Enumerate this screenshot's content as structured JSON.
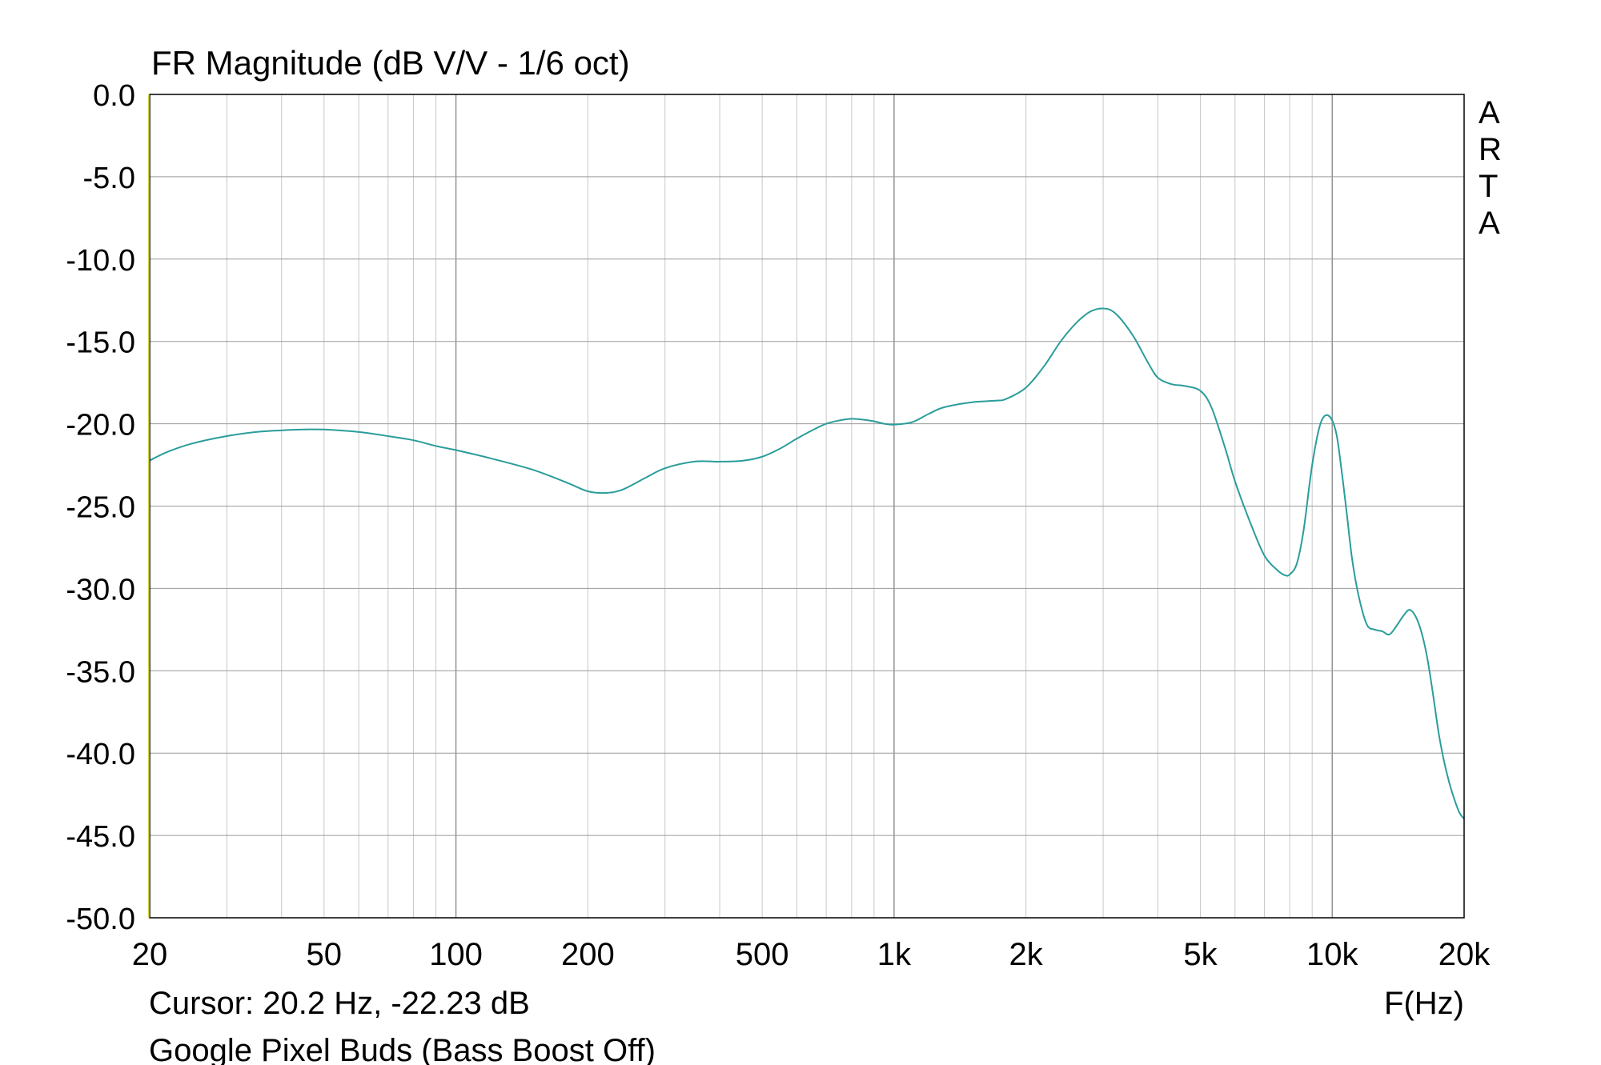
{
  "chart_data": {
    "type": "line",
    "title": "FR Magnitude (dB V/V - 1/6 oct)",
    "xlabel": "F(Hz)",
    "ylabel": "",
    "x_scale": "log",
    "xlim": [
      20,
      20000
    ],
    "ylim": [
      -50,
      0
    ],
    "grid": true,
    "x_ticks": [
      {
        "value": 20,
        "label": "20"
      },
      {
        "value": 50,
        "label": "50"
      },
      {
        "value": 100,
        "label": "100"
      },
      {
        "value": 200,
        "label": "200"
      },
      {
        "value": 500,
        "label": "500"
      },
      {
        "value": 1000,
        "label": "1k"
      },
      {
        "value": 2000,
        "label": "2k"
      },
      {
        "value": 5000,
        "label": "5k"
      },
      {
        "value": 10000,
        "label": "10k"
      },
      {
        "value": 20000,
        "label": "20k"
      }
    ],
    "y_ticks": [
      {
        "value": 0,
        "label": "0.0"
      },
      {
        "value": -5,
        "label": "-5.0"
      },
      {
        "value": -10,
        "label": "-10.0"
      },
      {
        "value": -15,
        "label": "-15.0"
      },
      {
        "value": -20,
        "label": "-20.0"
      },
      {
        "value": -25,
        "label": "-25.0"
      },
      {
        "value": -30,
        "label": "-30.0"
      },
      {
        "value": -35,
        "label": "-35.0"
      },
      {
        "value": -40,
        "label": "-40.0"
      },
      {
        "value": -45,
        "label": "-45.0"
      },
      {
        "value": -50,
        "label": "-50.0"
      }
    ],
    "watermark": "ARTA",
    "cursor_text": "Cursor: 20.2 Hz, -22.23 dB",
    "caption": "Google Pixel Buds (Bass Boost Off)",
    "line_color": "#2a9d9a",
    "series": [
      {
        "x": [
          20,
          22,
          25,
          30,
          35,
          40,
          45,
          50,
          60,
          70,
          80,
          90,
          100,
          120,
          150,
          180,
          200,
          220,
          240,
          270,
          300,
          350,
          400,
          450,
          500,
          550,
          600,
          650,
          700,
          750,
          800,
          850,
          900,
          950,
          1000,
          1100,
          1200,
          1300,
          1500,
          1700,
          1800,
          2000,
          2200,
          2400,
          2600,
          2800,
          3000,
          3200,
          3500,
          3800,
          4000,
          4300,
          4600,
          5000,
          5300,
          5700,
          6000,
          6500,
          7000,
          7500,
          7800,
          8000,
          8300,
          8600,
          9000,
          9400,
          9800,
          10200,
          10500,
          10800,
          11100,
          11500,
          12000,
          12500,
          13000,
          13500,
          14000,
          14500,
          15000,
          15500,
          16000,
          16500,
          17000,
          17500,
          18000,
          18500,
          19000,
          19500,
          20000
        ],
        "y": [
          -22.23,
          -21.7,
          -21.2,
          -20.75,
          -20.5,
          -20.4,
          -20.35,
          -20.35,
          -20.5,
          -20.75,
          -21.0,
          -21.35,
          -21.6,
          -22.1,
          -22.8,
          -23.6,
          -24.1,
          -24.2,
          -24.0,
          -23.3,
          -22.7,
          -22.3,
          -22.3,
          -22.25,
          -22.0,
          -21.5,
          -20.9,
          -20.4,
          -20.0,
          -19.8,
          -19.7,
          -19.75,
          -19.85,
          -20.0,
          -20.05,
          -19.9,
          -19.4,
          -19.0,
          -18.7,
          -18.6,
          -18.5,
          -17.8,
          -16.5,
          -15.0,
          -13.9,
          -13.2,
          -13.0,
          -13.3,
          -14.6,
          -16.3,
          -17.2,
          -17.6,
          -17.7,
          -18.0,
          -19.0,
          -21.5,
          -23.5,
          -26.0,
          -28.0,
          -28.9,
          -29.2,
          -29.15,
          -28.5,
          -26.5,
          -22.5,
          -20.0,
          -19.5,
          -20.5,
          -22.8,
          -25.5,
          -28.2,
          -30.5,
          -32.2,
          -32.5,
          -32.6,
          -32.8,
          -32.3,
          -31.7,
          -31.3,
          -31.7,
          -32.7,
          -34.3,
          -36.5,
          -38.8,
          -40.5,
          -41.8,
          -42.8,
          -43.6,
          -44.0
        ]
      }
    ]
  }
}
